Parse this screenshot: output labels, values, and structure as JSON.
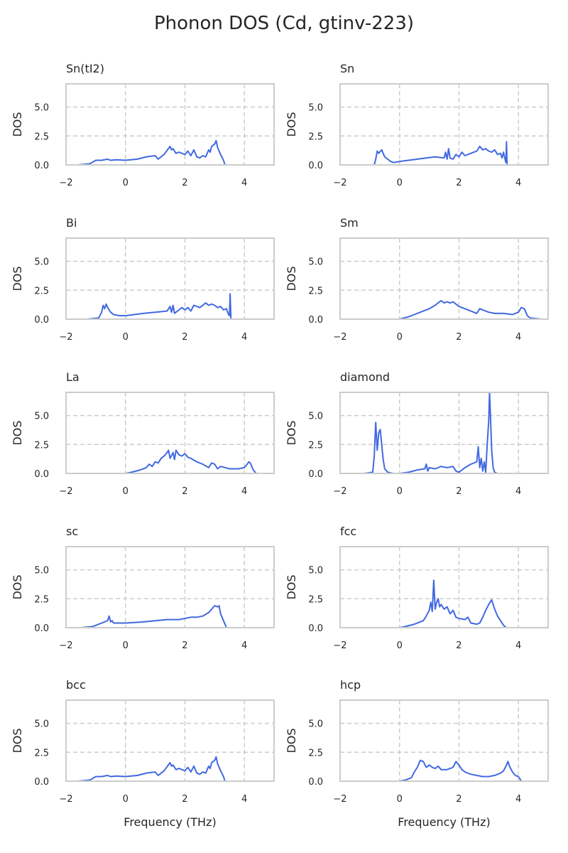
{
  "figure": {
    "title": "Phonon DOS (Cd, gtinv-223)"
  },
  "colors": {
    "line": "#4169e1",
    "grid": "#cccccc",
    "frame": "#cccccc"
  },
  "chart_data": [
    {
      "type": "line",
      "title": "Sn(tI2)",
      "ylabel": "DOS",
      "xlabel": "",
      "xlim": [
        -2,
        5
      ],
      "ylim": [
        0,
        7
      ],
      "xticks": [
        "−2",
        "0",
        "2",
        "4"
      ],
      "yticks": [
        "0.0",
        "2.5",
        "5.0"
      ],
      "grid": true,
      "x": [
        -1.6,
        -1.2,
        -1.0,
        -0.8,
        -0.6,
        -0.5,
        -0.3,
        0.0,
        0.4,
        0.7,
        1.0,
        1.1,
        1.3,
        1.5,
        1.55,
        1.6,
        1.7,
        1.8,
        2.0,
        2.1,
        2.2,
        2.3,
        2.4,
        2.5,
        2.6,
        2.7,
        2.8,
        2.85,
        2.9,
        3.0,
        3.05,
        3.1,
        3.2,
        3.3,
        3.35
      ],
      "y": [
        0.0,
        0.1,
        0.4,
        0.4,
        0.5,
        0.4,
        0.45,
        0.4,
        0.5,
        0.7,
        0.8,
        0.5,
        0.9,
        1.6,
        1.3,
        1.4,
        1.0,
        1.1,
        0.9,
        1.2,
        0.8,
        1.3,
        0.7,
        0.6,
        0.8,
        0.7,
        1.3,
        1.1,
        1.6,
        1.8,
        2.1,
        1.5,
        0.9,
        0.4,
        0.0
      ]
    },
    {
      "type": "line",
      "title": "Sn",
      "ylabel": "DOS",
      "xlabel": "",
      "xlim": [
        -2,
        5
      ],
      "ylim": [
        0,
        7
      ],
      "xticks": [
        "−2",
        "0",
        "2",
        "4"
      ],
      "yticks": [
        "0.0",
        "2.5",
        "5.0"
      ],
      "grid": true,
      "x": [
        -0.85,
        -0.8,
        -0.75,
        -0.7,
        -0.6,
        -0.55,
        -0.5,
        -0.4,
        -0.3,
        -0.2,
        0.0,
        0.3,
        0.6,
        0.9,
        1.2,
        1.5,
        1.55,
        1.6,
        1.65,
        1.7,
        1.8,
        1.9,
        2.0,
        2.1,
        2.2,
        2.4,
        2.6,
        2.7,
        2.8,
        2.9,
        3.0,
        3.1,
        3.2,
        3.3,
        3.4,
        3.45,
        3.5,
        3.55,
        3.58,
        3.6,
        3.62
      ],
      "y": [
        0.0,
        0.5,
        1.2,
        1.0,
        1.3,
        1.0,
        0.7,
        0.5,
        0.3,
        0.2,
        0.3,
        0.4,
        0.5,
        0.6,
        0.7,
        0.6,
        1.1,
        0.5,
        1.4,
        0.6,
        0.5,
        0.9,
        0.7,
        1.1,
        0.8,
        1.0,
        1.2,
        1.6,
        1.3,
        1.4,
        1.2,
        1.1,
        1.3,
        0.9,
        1.0,
        0.6,
        1.1,
        0.5,
        0.2,
        2.0,
        0.0
      ]
    },
    {
      "type": "line",
      "title": "Bi",
      "ylabel": "DOS",
      "xlabel": "",
      "xlim": [
        -2,
        5
      ],
      "ylim": [
        0,
        7
      ],
      "xticks": [
        "−2",
        "0",
        "2",
        "4"
      ],
      "yticks": [
        "0.0",
        "2.5",
        "5.0"
      ],
      "grid": true,
      "x": [
        -1.3,
        -0.9,
        -0.8,
        -0.75,
        -0.7,
        -0.65,
        -0.6,
        -0.5,
        -0.4,
        -0.2,
        0.0,
        0.3,
        0.6,
        1.0,
        1.4,
        1.5,
        1.55,
        1.6,
        1.65,
        1.7,
        1.8,
        1.9,
        2.0,
        2.1,
        2.2,
        2.3,
        2.5,
        2.7,
        2.8,
        2.9,
        3.0,
        3.1,
        3.2,
        3.3,
        3.4,
        3.45,
        3.5,
        3.52,
        3.55
      ],
      "y": [
        0.0,
        0.1,
        0.6,
        1.2,
        0.9,
        1.3,
        1.0,
        0.6,
        0.4,
        0.3,
        0.3,
        0.4,
        0.5,
        0.6,
        0.7,
        1.1,
        0.6,
        1.2,
        0.5,
        0.6,
        0.8,
        1.0,
        0.8,
        1.0,
        0.7,
        1.2,
        1.0,
        1.4,
        1.2,
        1.3,
        1.2,
        1.0,
        1.1,
        0.8,
        0.9,
        0.5,
        0.3,
        2.2,
        0.0
      ]
    },
    {
      "type": "line",
      "title": "Sm",
      "ylabel": "DOS",
      "xlabel": "",
      "xlim": [
        -2,
        5
      ],
      "ylim": [
        0,
        7
      ],
      "xticks": [
        "−2",
        "0",
        "2",
        "4"
      ],
      "yticks": [
        "0.0",
        "2.5",
        "5.0"
      ],
      "grid": true,
      "x": [
        -0.4,
        0.0,
        0.3,
        0.5,
        0.8,
        1.0,
        1.2,
        1.3,
        1.4,
        1.5,
        1.6,
        1.7,
        1.8,
        1.9,
        2.0,
        2.2,
        2.4,
        2.6,
        2.7,
        2.8,
        3.0,
        3.2,
        3.5,
        3.8,
        4.0,
        4.1,
        4.2,
        4.3,
        4.4,
        4.8
      ],
      "y": [
        0.0,
        0.0,
        0.2,
        0.4,
        0.7,
        0.9,
        1.2,
        1.4,
        1.6,
        1.4,
        1.5,
        1.4,
        1.5,
        1.3,
        1.1,
        0.9,
        0.7,
        0.5,
        0.9,
        0.8,
        0.6,
        0.5,
        0.5,
        0.4,
        0.6,
        1.0,
        0.9,
        0.3,
        0.1,
        0.0
      ]
    },
    {
      "type": "line",
      "title": "La",
      "ylabel": "DOS",
      "xlabel": "",
      "xlim": [
        -2,
        5
      ],
      "ylim": [
        0,
        7
      ],
      "xticks": [
        "−2",
        "0",
        "2",
        "4"
      ],
      "yticks": [
        "0.0",
        "2.5",
        "5.0"
      ],
      "grid": true,
      "x": [
        -0.6,
        0.0,
        0.2,
        0.5,
        0.7,
        0.8,
        0.9,
        1.0,
        1.1,
        1.2,
        1.3,
        1.4,
        1.45,
        1.5,
        1.6,
        1.65,
        1.7,
        1.8,
        1.9,
        2.0,
        2.1,
        2.2,
        2.4,
        2.6,
        2.8,
        2.9,
        3.0,
        3.1,
        3.2,
        3.5,
        3.8,
        4.0,
        4.1,
        4.15,
        4.2,
        4.3,
        4.4,
        4.8
      ],
      "y": [
        0.0,
        0.0,
        0.1,
        0.3,
        0.5,
        0.8,
        0.6,
        1.0,
        0.9,
        1.3,
        1.5,
        1.8,
        2.0,
        1.3,
        1.8,
        1.2,
        2.0,
        1.6,
        1.5,
        1.7,
        1.4,
        1.3,
        1.0,
        0.8,
        0.5,
        0.9,
        0.8,
        0.4,
        0.6,
        0.4,
        0.4,
        0.5,
        0.8,
        1.0,
        0.9,
        0.3,
        0.0,
        0.0
      ]
    },
    {
      "type": "line",
      "title": "diamond",
      "ylabel": "DOS",
      "xlabel": "",
      "xlim": [
        -2,
        5
      ],
      "ylim": [
        0,
        7
      ],
      "xticks": [
        "−2",
        "0",
        "2",
        "4"
      ],
      "yticks": [
        "0.0",
        "2.5",
        "5.0"
      ],
      "grid": true,
      "x": [
        -1.2,
        -0.9,
        -0.85,
        -0.8,
        -0.75,
        -0.7,
        -0.65,
        -0.6,
        -0.55,
        -0.5,
        -0.4,
        -0.2,
        0.0,
        0.3,
        0.6,
        0.85,
        0.9,
        0.95,
        1.0,
        1.2,
        1.4,
        1.6,
        1.8,
        1.9,
        2.0,
        2.2,
        2.4,
        2.6,
        2.65,
        2.7,
        2.75,
        2.8,
        2.85,
        2.9,
        2.95,
        3.0,
        3.03,
        3.06,
        3.1,
        3.15,
        3.2,
        3.3,
        3.6
      ],
      "y": [
        0.0,
        0.1,
        1.5,
        4.4,
        2.0,
        3.5,
        3.8,
        2.5,
        1.2,
        0.4,
        0.1,
        0.0,
        0.0,
        0.1,
        0.3,
        0.4,
        0.8,
        0.2,
        0.5,
        0.4,
        0.6,
        0.5,
        0.6,
        0.2,
        0.1,
        0.5,
        0.8,
        1.0,
        2.3,
        0.5,
        1.3,
        0.2,
        1.0,
        0.1,
        2.5,
        4.5,
        7.0,
        5.0,
        2.0,
        0.5,
        0.1,
        0.0,
        0.0
      ]
    },
    {
      "type": "line",
      "title": "sc",
      "ylabel": "DOS",
      "xlabel": "",
      "xlim": [
        -2,
        5
      ],
      "ylim": [
        0,
        7
      ],
      "xticks": [
        "−2",
        "0",
        "2",
        "4"
      ],
      "yticks": [
        "0.0",
        "2.5",
        "5.0"
      ],
      "grid": true,
      "x": [
        -1.5,
        -1.1,
        -1.0,
        -0.8,
        -0.6,
        -0.55,
        -0.5,
        -0.45,
        -0.4,
        -0.2,
        0.0,
        0.3,
        0.6,
        1.0,
        1.4,
        1.8,
        2.0,
        2.2,
        2.4,
        2.6,
        2.8,
        2.9,
        3.0,
        3.1,
        3.15,
        3.2,
        3.3,
        3.4
      ],
      "y": [
        0.0,
        0.1,
        0.2,
        0.4,
        0.6,
        1.0,
        0.5,
        0.6,
        0.4,
        0.4,
        0.4,
        0.45,
        0.5,
        0.6,
        0.7,
        0.7,
        0.8,
        0.9,
        0.9,
        1.0,
        1.3,
        1.6,
        1.9,
        1.8,
        1.9,
        1.2,
        0.6,
        0.0
      ]
    },
    {
      "type": "line",
      "title": "fcc",
      "ylabel": "DOS",
      "xlabel": "",
      "xlim": [
        -2,
        5
      ],
      "ylim": [
        0,
        7
      ],
      "xticks": [
        "−2",
        "0",
        "2",
        "4"
      ],
      "yticks": [
        "0.0",
        "2.5",
        "5.0"
      ],
      "grid": true,
      "x": [
        -0.2,
        0.0,
        0.2,
        0.5,
        0.8,
        0.9,
        1.0,
        1.05,
        1.1,
        1.15,
        1.2,
        1.25,
        1.3,
        1.35,
        1.4,
        1.5,
        1.6,
        1.7,
        1.8,
        1.9,
        2.0,
        2.2,
        2.3,
        2.4,
        2.6,
        2.7,
        2.8,
        2.9,
        3.0,
        3.05,
        3.1,
        3.2,
        3.3,
        3.4,
        3.5,
        3.6
      ],
      "y": [
        0.0,
        0.0,
        0.1,
        0.3,
        0.6,
        1.0,
        1.5,
        2.2,
        1.4,
        4.1,
        1.6,
        2.2,
        2.5,
        1.8,
        2.0,
        1.6,
        1.8,
        1.2,
        1.5,
        0.9,
        0.8,
        0.7,
        0.9,
        0.4,
        0.3,
        0.4,
        0.9,
        1.5,
        2.0,
        2.2,
        2.4,
        1.6,
        1.0,
        0.6,
        0.2,
        0.0
      ]
    },
    {
      "type": "line",
      "title": "bcc",
      "ylabel": "DOS",
      "xlabel": "Frequency (THz)",
      "xlim": [
        -2,
        5
      ],
      "ylim": [
        0,
        7
      ],
      "xticks": [
        "−2",
        "0",
        "2",
        "4"
      ],
      "yticks": [
        "0.0",
        "2.5",
        "5.0"
      ],
      "grid": true,
      "x": [
        -1.6,
        -1.2,
        -1.0,
        -0.8,
        -0.6,
        -0.5,
        -0.3,
        0.0,
        0.4,
        0.7,
        1.0,
        1.1,
        1.3,
        1.5,
        1.55,
        1.6,
        1.7,
        1.8,
        2.0,
        2.1,
        2.2,
        2.3,
        2.4,
        2.5,
        2.6,
        2.7,
        2.8,
        2.85,
        2.9,
        3.0,
        3.05,
        3.1,
        3.2,
        3.3,
        3.35
      ],
      "y": [
        0.0,
        0.1,
        0.4,
        0.4,
        0.5,
        0.4,
        0.45,
        0.4,
        0.5,
        0.7,
        0.8,
        0.5,
        0.9,
        1.6,
        1.3,
        1.4,
        1.0,
        1.1,
        0.9,
        1.2,
        0.8,
        1.3,
        0.7,
        0.6,
        0.8,
        0.7,
        1.3,
        1.1,
        1.6,
        1.8,
        2.1,
        1.5,
        0.9,
        0.4,
        0.0
      ]
    },
    {
      "type": "line",
      "title": "hcp",
      "ylabel": "DOS",
      "xlabel": "Frequency (THz)",
      "xlim": [
        -2,
        5
      ],
      "ylim": [
        0,
        7
      ],
      "xticks": [
        "−2",
        "0",
        "2",
        "4"
      ],
      "yticks": [
        "0.0",
        "2.5",
        "5.0"
      ],
      "grid": true,
      "x": [
        -0.2,
        0.0,
        0.2,
        0.4,
        0.5,
        0.6,
        0.7,
        0.8,
        0.9,
        1.0,
        1.1,
        1.2,
        1.3,
        1.4,
        1.6,
        1.8,
        1.9,
        2.0,
        2.1,
        2.2,
        2.4,
        2.6,
        2.8,
        3.0,
        3.2,
        3.4,
        3.5,
        3.6,
        3.65,
        3.7,
        3.8,
        3.9,
        4.0,
        4.05,
        4.1,
        4.4
      ],
      "y": [
        0.0,
        0.0,
        0.1,
        0.3,
        0.8,
        1.2,
        1.8,
        1.7,
        1.2,
        1.4,
        1.2,
        1.1,
        1.3,
        1.0,
        1.0,
        1.2,
        1.7,
        1.4,
        1.0,
        0.8,
        0.6,
        0.5,
        0.4,
        0.4,
        0.5,
        0.7,
        0.9,
        1.4,
        1.7,
        1.3,
        0.8,
        0.5,
        0.4,
        0.2,
        0.0,
        0.0
      ]
    }
  ]
}
